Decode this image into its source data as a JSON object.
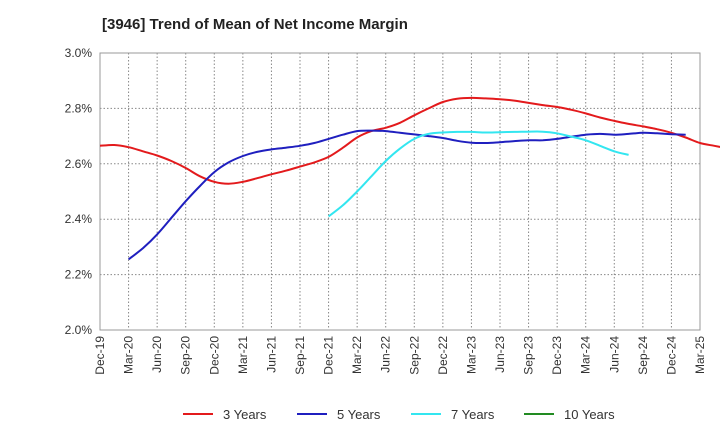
{
  "chart_data": {
    "type": "line",
    "title": "[3946]  Trend of Mean of Net Income Margin",
    "xlabel": "",
    "ylabel": "",
    "y_ticks": [
      "2.0%",
      "2.2%",
      "2.4%",
      "2.6%",
      "2.8%",
      "3.0%"
    ],
    "ylim": [
      2.0,
      3.0
    ],
    "x_ticks": [
      "Dec-19",
      "Mar-20",
      "Jun-20",
      "Sep-20",
      "Dec-20",
      "Mar-21",
      "Jun-21",
      "Sep-21",
      "Dec-21",
      "Mar-22",
      "Jun-22",
      "Sep-22",
      "Dec-22",
      "Mar-23",
      "Jun-23",
      "Sep-23",
      "Dec-23",
      "Mar-24",
      "Jun-24",
      "Sep-24",
      "Dec-24",
      "Mar-25"
    ],
    "grid": true,
    "legend_position": "bottom",
    "series": [
      {
        "name": "3 Years",
        "color": "#e31a1c",
        "start_index": 0,
        "values": [
          2.665,
          2.668,
          2.66,
          2.645,
          2.63,
          2.61,
          2.585,
          2.555,
          2.535,
          2.528,
          2.535,
          2.548,
          2.562,
          2.575,
          2.59,
          2.605,
          2.625,
          2.658,
          2.695,
          2.718,
          2.73,
          2.748,
          2.775,
          2.8,
          2.823,
          2.835,
          2.838,
          2.836,
          2.833,
          2.828,
          2.82,
          2.812,
          2.805,
          2.795,
          2.782,
          2.767,
          2.755,
          2.744,
          2.735,
          2.725,
          2.712,
          2.695,
          2.675,
          2.665,
          2.655
        ]
      },
      {
        "name": "5 Years",
        "color": "#1f1fbf",
        "start_index": 1,
        "values": [
          2.255,
          2.295,
          2.345,
          2.405,
          2.465,
          2.52,
          2.57,
          2.605,
          2.628,
          2.643,
          2.652,
          2.658,
          2.665,
          2.675,
          2.69,
          2.705,
          2.718,
          2.72,
          2.718,
          2.712,
          2.706,
          2.7,
          2.693,
          2.683,
          2.676,
          2.675,
          2.678,
          2.682,
          2.685,
          2.685,
          2.69,
          2.698,
          2.705,
          2.708,
          2.705,
          2.708,
          2.712,
          2.71,
          2.707,
          2.705
        ]
      },
      {
        "name": "7 Years",
        "color": "#33e6f0",
        "start_index": 8,
        "values": [
          2.41,
          2.45,
          2.5,
          2.555,
          2.61,
          2.655,
          2.69,
          2.708,
          2.713,
          2.715,
          2.715,
          2.713,
          2.714,
          2.715,
          2.716,
          2.716,
          2.71,
          2.698,
          2.685,
          2.665,
          2.645,
          2.632
        ]
      },
      {
        "name": "10 Years",
        "color": "#228b22",
        "start_index": 0,
        "values": []
      }
    ]
  }
}
